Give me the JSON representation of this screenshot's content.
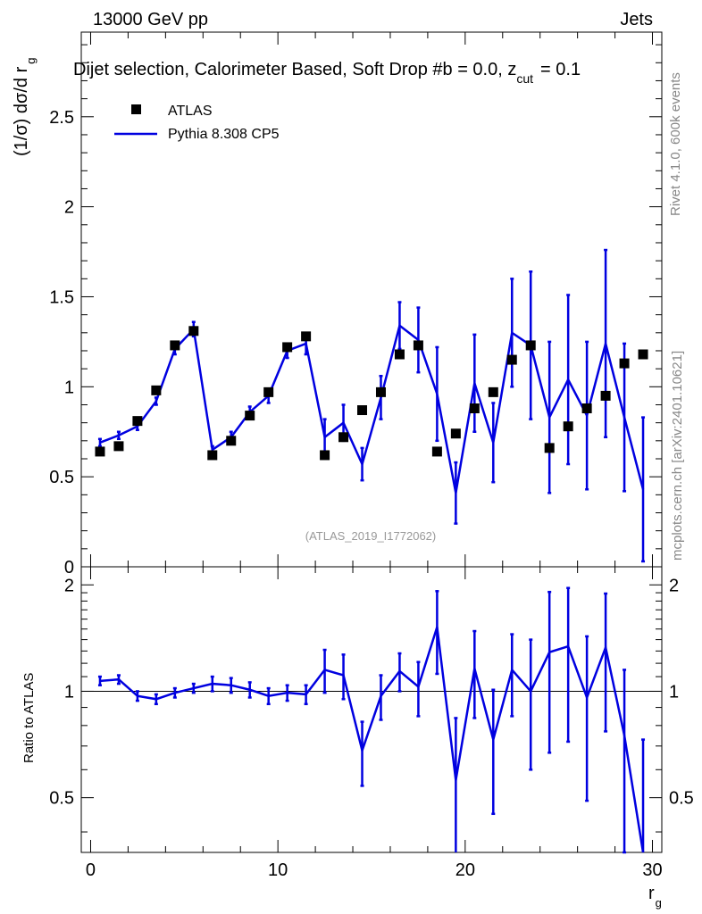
{
  "header": {
    "energy_label": "13000 GeV pp",
    "process_label": "Jets"
  },
  "chart_data": [
    {
      "type": "scatter",
      "title": "Dijet selection, Calorimeter Based, Soft Drop #b = 0.0, z",
      "title_sub": "cut",
      "title_tail": "= 0.1",
      "ylabel": "(1/σ) dσ/d r",
      "ylabel_sub": "g",
      "xlim": [
        -0.5,
        30.5
      ],
      "ylim": [
        0,
        2.97
      ],
      "yticks": [
        0,
        0.5,
        1,
        1.5,
        2,
        2.5
      ],
      "ytick_labels": [
        "0",
        "0.5",
        "1",
        "1.5",
        "2",
        "2.5"
      ],
      "analysis_label": "(ATLAS_2019_I1772062)",
      "legend": {
        "position": "top-left",
        "entries": [
          "ATLAS",
          "Pythia 8.308 CP5"
        ]
      },
      "series": [
        {
          "name": "ATLAS",
          "kind": "markers",
          "x": [
            0.5,
            1.5,
            2.5,
            3.5,
            4.5,
            5.5,
            6.5,
            7.5,
            8.5,
            9.5,
            10.5,
            11.5,
            12.5,
            13.5,
            14.5,
            15.5,
            16.5,
            17.5,
            18.5,
            19.5,
            20.5,
            21.5,
            22.5,
            23.5,
            24.5,
            25.5,
            26.5,
            27.5,
            28.5,
            29.5
          ],
          "y": [
            0.64,
            0.67,
            0.81,
            0.98,
            1.23,
            1.31,
            0.62,
            0.7,
            0.84,
            0.97,
            1.22,
            1.28,
            0.62,
            0.72,
            0.87,
            0.97,
            1.18,
            1.23,
            0.64,
            0.74,
            0.88,
            0.97,
            1.15,
            1.23,
            0.66,
            0.78,
            0.88,
            0.95,
            1.13,
            1.18
          ]
        },
        {
          "name": "Pythia 8.308 CP5",
          "kind": "line",
          "color": "#0000e0",
          "x": [
            0.5,
            1.5,
            2.5,
            3.5,
            4.5,
            5.5,
            6.5,
            7.5,
            8.5,
            9.5,
            10.5,
            11.5,
            12.5,
            13.5,
            14.5,
            15.5,
            16.5,
            17.5,
            18.5,
            19.5,
            20.5,
            21.5,
            22.5,
            23.5,
            24.5,
            25.5,
            26.5,
            27.5,
            28.5,
            29.5
          ],
          "y": [
            0.69,
            0.73,
            0.78,
            0.92,
            1.21,
            1.32,
            0.65,
            0.72,
            0.86,
            0.95,
            1.2,
            1.24,
            0.72,
            0.8,
            0.57,
            0.94,
            1.34,
            1.26,
            0.96,
            0.41,
            1.02,
            0.69,
            1.3,
            1.23,
            0.83,
            1.04,
            0.84,
            1.24,
            0.83,
            0.43
          ],
          "yerr": [
            0.02,
            0.02,
            0.02,
            0.02,
            0.03,
            0.04,
            0.02,
            0.03,
            0.03,
            0.04,
            0.04,
            0.06,
            0.1,
            0.1,
            0.09,
            0.12,
            0.13,
            0.18,
            0.26,
            0.17,
            0.27,
            0.22,
            0.3,
            0.41,
            0.42,
            0.47,
            0.41,
            0.52,
            0.41,
            0.4
          ]
        }
      ]
    },
    {
      "type": "line",
      "ylabel": "Ratio to ATLAS",
      "xlabel": "r",
      "xlabel_sub": "g",
      "xlim": [
        -0.5,
        30.5
      ],
      "ylim": [
        0.35,
        2.25
      ],
      "xticks": [
        0,
        10,
        20,
        30
      ],
      "xtick_labels": [
        "0",
        "10",
        "20",
        "30"
      ],
      "yticks": [
        0.5,
        1,
        2
      ],
      "ytick_labels": [
        "0.5",
        "1",
        "2"
      ],
      "reference_line": 1,
      "series": [
        {
          "name": "Pythia 8.308 CP5 / ATLAS",
          "color": "#0000e0",
          "x": [
            0.5,
            1.5,
            2.5,
            3.5,
            4.5,
            5.5,
            6.5,
            7.5,
            8.5,
            9.5,
            10.5,
            11.5,
            12.5,
            13.5,
            14.5,
            15.5,
            16.5,
            17.5,
            18.5,
            19.5,
            20.5,
            21.5,
            22.5,
            23.5,
            24.5,
            25.5,
            26.5,
            27.5,
            28.5,
            29.5
          ],
          "y": [
            1.07,
            1.08,
            0.97,
            0.95,
            0.99,
            1.02,
            1.05,
            1.04,
            1.01,
            0.97,
            0.99,
            0.98,
            1.15,
            1.11,
            0.68,
            0.97,
            1.14,
            1.03,
            1.52,
            0.56,
            1.16,
            0.73,
            1.15,
            1.0,
            1.29,
            1.34,
            0.96,
            1.33,
            0.75,
            0.33
          ],
          "yerr": [
            0.03,
            0.03,
            0.03,
            0.03,
            0.03,
            0.03,
            0.05,
            0.05,
            0.05,
            0.05,
            0.05,
            0.06,
            0.16,
            0.16,
            0.14,
            0.14,
            0.14,
            0.18,
            0.4,
            0.28,
            0.32,
            0.28,
            0.3,
            0.4,
            0.62,
            0.62,
            0.47,
            0.56,
            0.4,
            0.4
          ]
        }
      ]
    }
  ],
  "side_labels": {
    "rivet": "Rivet 4.1.0,  600k events",
    "mcplots": "mcplots.cern.ch [arXiv:2401.10621]"
  }
}
